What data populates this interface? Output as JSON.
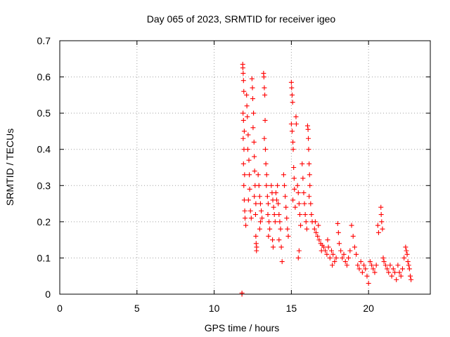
{
  "chart_data": {
    "type": "scatter",
    "title": "Day 065 of 2023, SRMTID for receiver igeo",
    "xlabel": "GPS time / hours",
    "ylabel": "SRMTID / TECUs",
    "xlim": [
      0,
      24
    ],
    "ylim": [
      0,
      0.7
    ],
    "x_ticks": [
      "0",
      "5",
      "10",
      "15",
      "20"
    ],
    "y_ticks": [
      "0",
      "0.1",
      "0.2",
      "0.3",
      "0.4",
      "0.5",
      "0.6",
      "0.7"
    ],
    "grid": true,
    "marker": "+",
    "color": "#ff0000",
    "series": [
      {
        "name": "SRMTID",
        "points": [
          [
            11.8,
            0.0
          ],
          [
            11.8,
            0.003
          ],
          [
            11.85,
            0.635
          ],
          [
            11.86,
            0.625
          ],
          [
            11.88,
            0.61
          ],
          [
            11.9,
            0.59
          ],
          [
            11.92,
            0.56
          ],
          [
            11.87,
            0.5
          ],
          [
            11.9,
            0.48
          ],
          [
            11.95,
            0.45
          ],
          [
            11.88,
            0.43
          ],
          [
            11.93,
            0.4
          ],
          [
            11.9,
            0.36
          ],
          [
            11.97,
            0.33
          ],
          [
            11.92,
            0.3
          ],
          [
            11.95,
            0.26
          ],
          [
            11.98,
            0.23
          ],
          [
            12.0,
            0.21
          ],
          [
            12.05,
            0.19
          ],
          [
            12.1,
            0.55
          ],
          [
            12.12,
            0.52
          ],
          [
            12.15,
            0.49
          ],
          [
            12.2,
            0.44
          ],
          [
            12.18,
            0.4
          ],
          [
            12.25,
            0.37
          ],
          [
            12.28,
            0.33
          ],
          [
            12.3,
            0.29
          ],
          [
            12.22,
            0.26
          ],
          [
            12.35,
            0.23
          ],
          [
            12.4,
            0.21
          ],
          [
            12.45,
            0.595
          ],
          [
            12.48,
            0.57
          ],
          [
            12.5,
            0.54
          ],
          [
            12.55,
            0.5
          ],
          [
            12.52,
            0.46
          ],
          [
            12.58,
            0.42
          ],
          [
            12.6,
            0.38
          ],
          [
            12.62,
            0.34
          ],
          [
            12.65,
            0.3
          ],
          [
            12.6,
            0.27
          ],
          [
            12.7,
            0.25
          ],
          [
            12.68,
            0.22
          ],
          [
            12.7,
            0.16
          ],
          [
            12.72,
            0.14
          ],
          [
            12.75,
            0.13
          ],
          [
            12.74,
            0.12
          ],
          [
            12.85,
            0.33
          ],
          [
            12.9,
            0.3
          ],
          [
            12.95,
            0.27
          ],
          [
            13.0,
            0.25
          ],
          [
            13.05,
            0.23
          ],
          [
            13.1,
            0.21
          ],
          [
            13.0,
            0.2
          ],
          [
            12.95,
            0.18
          ],
          [
            13.2,
            0.61
          ],
          [
            13.22,
            0.6
          ],
          [
            13.25,
            0.57
          ],
          [
            13.28,
            0.55
          ],
          [
            13.3,
            0.48
          ],
          [
            13.25,
            0.43
          ],
          [
            13.32,
            0.4
          ],
          [
            13.35,
            0.36
          ],
          [
            13.4,
            0.33
          ],
          [
            13.38,
            0.3
          ],
          [
            13.45,
            0.27
          ],
          [
            13.5,
            0.25
          ],
          [
            13.48,
            0.22
          ],
          [
            13.55,
            0.2
          ],
          [
            13.6,
            0.18
          ],
          [
            13.52,
            0.16
          ],
          [
            13.7,
            0.3
          ],
          [
            13.75,
            0.28
          ],
          [
            13.8,
            0.26
          ],
          [
            13.85,
            0.24
          ],
          [
            13.9,
            0.22
          ],
          [
            13.95,
            0.2
          ],
          [
            13.78,
            0.15
          ],
          [
            13.82,
            0.13
          ],
          [
            14.0,
            0.28
          ],
          [
            14.05,
            0.26
          ],
          [
            14.1,
            0.3
          ],
          [
            14.15,
            0.25
          ],
          [
            14.2,
            0.22
          ],
          [
            14.25,
            0.2
          ],
          [
            14.3,
            0.18
          ],
          [
            14.2,
            0.15
          ],
          [
            14.35,
            0.13
          ],
          [
            14.4,
            0.09
          ],
          [
            14.5,
            0.33
          ],
          [
            14.55,
            0.3
          ],
          [
            14.6,
            0.27
          ],
          [
            14.65,
            0.24
          ],
          [
            14.7,
            0.21
          ],
          [
            14.75,
            0.18
          ],
          [
            14.8,
            0.16
          ],
          [
            15.0,
            0.585
          ],
          [
            15.02,
            0.57
          ],
          [
            15.05,
            0.55
          ],
          [
            15.08,
            0.53
          ],
          [
            15.0,
            0.47
          ],
          [
            15.05,
            0.45
          ],
          [
            15.1,
            0.42
          ],
          [
            15.12,
            0.4
          ],
          [
            15.15,
            0.35
          ],
          [
            15.18,
            0.32
          ],
          [
            15.2,
            0.29
          ],
          [
            15.1,
            0.26
          ],
          [
            15.25,
            0.24
          ],
          [
            15.3,
            0.49
          ],
          [
            15.32,
            0.47
          ],
          [
            15.4,
            0.3
          ],
          [
            15.45,
            0.28
          ],
          [
            15.5,
            0.25
          ],
          [
            15.55,
            0.22
          ],
          [
            15.6,
            0.19
          ],
          [
            15.5,
            0.12
          ],
          [
            15.45,
            0.1
          ],
          [
            15.7,
            0.36
          ],
          [
            15.75,
            0.32
          ],
          [
            15.8,
            0.28
          ],
          [
            15.85,
            0.25
          ],
          [
            15.9,
            0.22
          ],
          [
            15.95,
            0.2
          ],
          [
            16.0,
            0.18
          ],
          [
            16.05,
            0.465
          ],
          [
            16.08,
            0.455
          ],
          [
            16.1,
            0.43
          ],
          [
            16.12,
            0.4
          ],
          [
            16.15,
            0.36
          ],
          [
            16.18,
            0.33
          ],
          [
            16.2,
            0.3
          ],
          [
            16.15,
            0.27
          ],
          [
            16.25,
            0.25
          ],
          [
            16.3,
            0.22
          ],
          [
            16.35,
            0.2
          ],
          [
            16.5,
            0.18
          ],
          [
            16.6,
            0.17
          ],
          [
            16.7,
            0.16
          ],
          [
            16.8,
            0.15
          ],
          [
            16.9,
            0.14
          ],
          [
            17.0,
            0.135
          ],
          [
            17.1,
            0.13
          ],
          [
            16.55,
            0.2
          ],
          [
            16.75,
            0.19
          ],
          [
            16.95,
            0.12
          ],
          [
            17.2,
            0.12
          ],
          [
            17.3,
            0.11
          ],
          [
            17.4,
            0.13
          ],
          [
            17.5,
            0.1
          ],
          [
            17.6,
            0.12
          ],
          [
            17.7,
            0.11
          ],
          [
            17.8,
            0.09
          ],
          [
            17.9,
            0.1
          ],
          [
            17.35,
            0.15
          ],
          [
            17.65,
            0.08
          ],
          [
            18.0,
            0.195
          ],
          [
            18.05,
            0.17
          ],
          [
            18.1,
            0.14
          ],
          [
            18.2,
            0.12
          ],
          [
            18.3,
            0.1
          ],
          [
            18.4,
            0.11
          ],
          [
            18.5,
            0.09
          ],
          [
            18.6,
            0.08
          ],
          [
            18.7,
            0.1
          ],
          [
            18.8,
            0.12
          ],
          [
            18.9,
            0.19
          ],
          [
            19.0,
            0.16
          ],
          [
            19.1,
            0.13
          ],
          [
            19.2,
            0.11
          ],
          [
            19.3,
            0.08
          ],
          [
            19.4,
            0.07
          ],
          [
            19.5,
            0.09
          ],
          [
            19.6,
            0.06
          ],
          [
            19.7,
            0.08
          ],
          [
            19.8,
            0.07
          ],
          [
            19.9,
            0.05
          ],
          [
            20.0,
            0.03
          ],
          [
            20.1,
            0.09
          ],
          [
            20.2,
            0.08
          ],
          [
            20.3,
            0.07
          ],
          [
            20.4,
            0.06
          ],
          [
            20.5,
            0.08
          ],
          [
            20.6,
            0.19
          ],
          [
            20.65,
            0.17
          ],
          [
            20.8,
            0.24
          ],
          [
            20.82,
            0.22
          ],
          [
            20.85,
            0.2
          ],
          [
            20.9,
            0.18
          ],
          [
            20.95,
            0.1
          ],
          [
            21.0,
            0.09
          ],
          [
            21.1,
            0.08
          ],
          [
            21.2,
            0.07
          ],
          [
            21.3,
            0.06
          ],
          [
            21.4,
            0.08
          ],
          [
            21.5,
            0.05
          ],
          [
            21.6,
            0.07
          ],
          [
            21.7,
            0.06
          ],
          [
            21.8,
            0.04
          ],
          [
            21.9,
            0.08
          ],
          [
            22.0,
            0.06
          ],
          [
            22.1,
            0.05
          ],
          [
            22.2,
            0.07
          ],
          [
            22.3,
            0.1
          ],
          [
            22.4,
            0.13
          ],
          [
            22.45,
            0.12
          ],
          [
            22.5,
            0.11
          ],
          [
            22.55,
            0.09
          ],
          [
            22.6,
            0.08
          ],
          [
            22.65,
            0.07
          ],
          [
            22.7,
            0.05
          ],
          [
            22.75,
            0.04
          ]
        ]
      }
    ]
  }
}
